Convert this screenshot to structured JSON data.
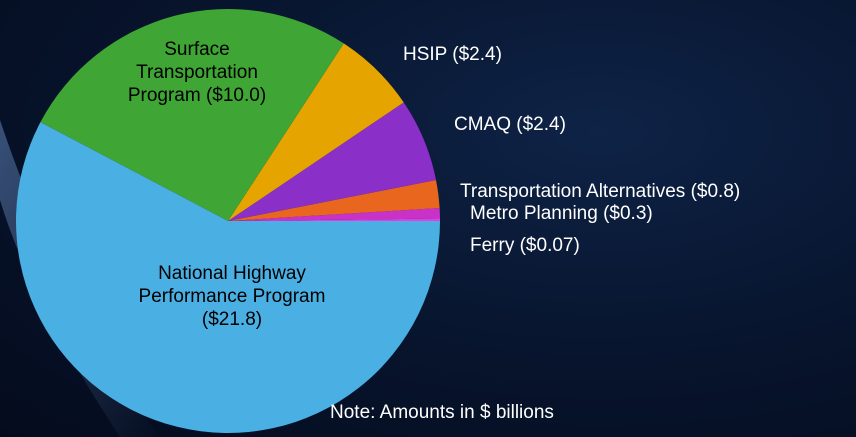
{
  "chart_data": {
    "type": "pie",
    "categories": [
      "Ferry ($0.07)",
      "Metro Planning ($0.3)",
      "Transportation Alternatives ($0.8)",
      "CMAQ ($2.4)",
      "HSIP ($2.4)",
      "Surface Transportation Program ($10.0)",
      "National Highway Performance Program ($21.8)"
    ],
    "values": [
      0.07,
      0.3,
      0.8,
      2.4,
      2.4,
      10.0,
      21.8
    ],
    "colors": [
      "#e040e0",
      "#c832c8",
      "#e8661e",
      "#8a2fc8",
      "#e6a400",
      "#3fa535",
      "#4aafe2"
    ],
    "note": "Note: Amounts in $ billions"
  }
}
